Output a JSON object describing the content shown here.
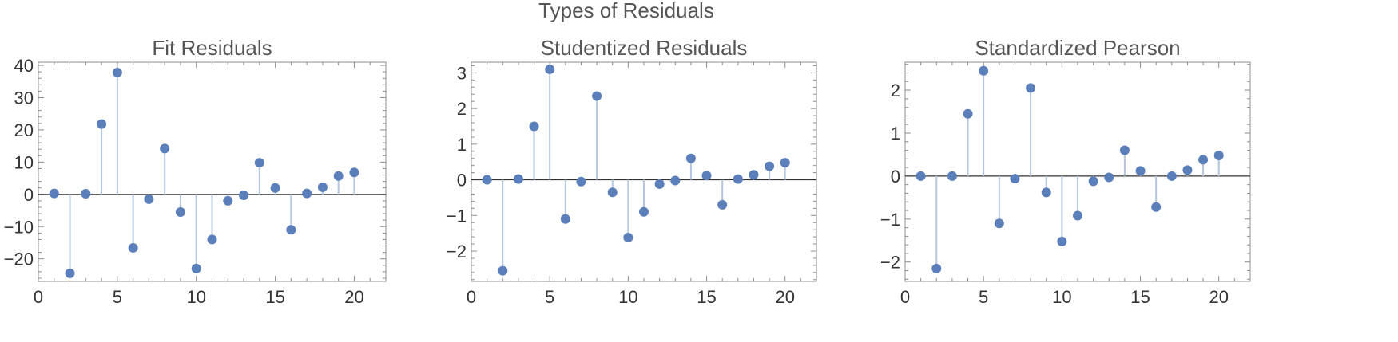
{
  "figure": {
    "title": "Types of Residuals"
  },
  "colors": {
    "point": "#5b7fba",
    "stem": "#b4c6e0",
    "axis": "#333333",
    "text": "#555555",
    "frame": "#8c8c8c"
  },
  "chart_data": [
    {
      "type": "scatter",
      "style": "stem",
      "title": "Fit Residuals",
      "xlabel": "",
      "ylabel": "",
      "xlim": [
        0,
        22
      ],
      "ylim": [
        -27,
        41
      ],
      "xticks": [
        0,
        5,
        10,
        15,
        20
      ],
      "yticks": [
        -20,
        -10,
        0,
        10,
        20,
        30,
        40
      ],
      "yticklabels": [
        "−20",
        "−10",
        "0",
        "10",
        "20",
        "30",
        "40"
      ],
      "x": [
        1,
        2,
        3,
        4,
        5,
        6,
        7,
        8,
        9,
        10,
        11,
        12,
        13,
        14,
        15,
        16,
        17,
        18,
        19,
        20
      ],
      "y": [
        0.3,
        -24.5,
        0.2,
        21.8,
        37.8,
        -16.6,
        -1.5,
        14.2,
        -5.5,
        -23.0,
        -14.0,
        -2.0,
        -0.3,
        9.8,
        2.0,
        -11.0,
        0.3,
        2.2,
        5.7,
        6.8
      ]
    },
    {
      "type": "scatter",
      "style": "stem",
      "title": "Studentized Residuals",
      "xlabel": "",
      "ylabel": "",
      "xlim": [
        0,
        22
      ],
      "ylim": [
        -2.85,
        3.3
      ],
      "xticks": [
        0,
        5,
        10,
        15,
        20
      ],
      "yticks": [
        -2,
        -1,
        0,
        1,
        2,
        3
      ],
      "yticklabels": [
        "−2",
        "−1",
        "0",
        "1",
        "2",
        "3"
      ],
      "x": [
        1,
        2,
        3,
        4,
        5,
        6,
        7,
        8,
        9,
        10,
        11,
        12,
        13,
        14,
        15,
        16,
        17,
        18,
        19,
        20
      ],
      "y": [
        0.0,
        -2.55,
        0.02,
        1.5,
        3.1,
        -1.1,
        -0.05,
        2.35,
        -0.35,
        -1.62,
        -0.9,
        -0.12,
        -0.02,
        0.6,
        0.12,
        -0.7,
        0.02,
        0.14,
        0.38,
        0.48
      ]
    },
    {
      "type": "scatter",
      "style": "stem",
      "title": "Standardized Pearson",
      "xlabel": "",
      "ylabel": "",
      "xlim": [
        0,
        22
      ],
      "ylim": [
        -2.45,
        2.65
      ],
      "xticks": [
        0,
        5,
        10,
        15,
        20
      ],
      "yticks": [
        -2,
        -1,
        0,
        1,
        2
      ],
      "yticklabels": [
        "−2",
        "−1",
        "0",
        "1",
        "2"
      ],
      "x": [
        1,
        2,
        3,
        4,
        5,
        6,
        7,
        8,
        9,
        10,
        11,
        12,
        13,
        14,
        15,
        16,
        17,
        18,
        19,
        20
      ],
      "y": [
        0.0,
        -2.15,
        0.0,
        1.45,
        2.45,
        -1.1,
        -0.06,
        2.05,
        -0.38,
        -1.52,
        -0.92,
        -0.12,
        -0.03,
        0.6,
        0.12,
        -0.72,
        0.0,
        0.14,
        0.38,
        0.48
      ]
    }
  ]
}
